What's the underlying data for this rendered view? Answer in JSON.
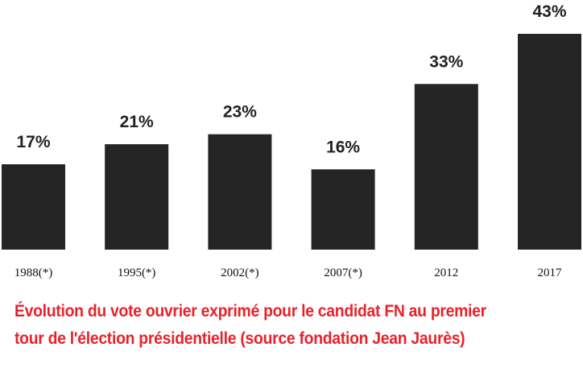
{
  "caption": {
    "line1": "Évolution du vote ouvrier exprimé pour le candidat FN au premier",
    "line2": "tour de l'élection présidentielle (source fondation Jean Jaurès)"
  },
  "colors": {
    "bar": "#252525",
    "value_label": "#222222",
    "caption": "#e8222a"
  },
  "chart_data": {
    "type": "bar",
    "categories": [
      "1988(*)",
      "1995(*)",
      "2002(*)",
      "2007(*)",
      "2012",
      "2017"
    ],
    "values": [
      17,
      21,
      23,
      16,
      33,
      43
    ],
    "value_labels": [
      "17%",
      "21%",
      "23%",
      "16%",
      "33%",
      "43%"
    ],
    "title": "",
    "xlabel": "",
    "ylabel": "",
    "ylim": [
      0,
      43
    ],
    "grid": false,
    "legend": "none"
  }
}
